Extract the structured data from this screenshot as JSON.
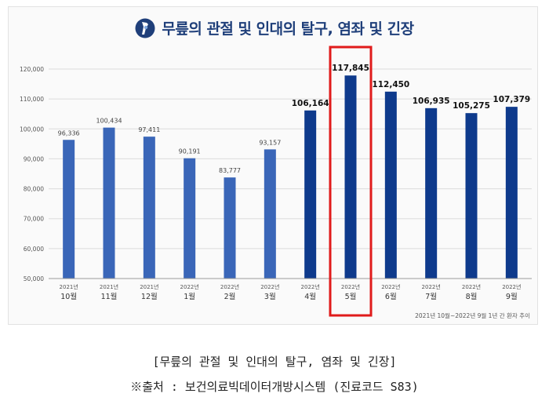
{
  "title": "무릎의 관절 및 인대의 탈구, 염좌 및 긴장",
  "note": "2021년 10월~2022년 9월 1년 간 환자 추이",
  "caption_title": "[무릎의 관절 및 인대의 탈구, 염좌 및 긴장]",
  "caption_source": "※출처 : 보건의료빅데이터개방시스템 (진료코드 S83)",
  "colors": {
    "light_bar": "#3a66b8",
    "dark_bar": "#0e3a8c",
    "highlight": "#e01b1b",
    "title": "#1f3f7a"
  },
  "chart_data": {
    "type": "bar",
    "title": "무릎의 관절 및 인대의 탈구, 염좌 및 긴장",
    "categories": [
      {
        "year": "2021년",
        "month": "10월"
      },
      {
        "year": "2021년",
        "month": "11월"
      },
      {
        "year": "2021년",
        "month": "12월"
      },
      {
        "year": "2022년",
        "month": "1월"
      },
      {
        "year": "2022년",
        "month": "2월"
      },
      {
        "year": "2022년",
        "month": "3월"
      },
      {
        "year": "2022년",
        "month": "4월"
      },
      {
        "year": "2022년",
        "month": "5월"
      },
      {
        "year": "2022년",
        "month": "6월"
      },
      {
        "year": "2022년",
        "month": "7월"
      },
      {
        "year": "2022년",
        "month": "8월"
      },
      {
        "year": "2022년",
        "month": "9월"
      }
    ],
    "values": [
      96336,
      100434,
      97411,
      90191,
      83777,
      93157,
      106164,
      117845,
      112450,
      106935,
      105275,
      107379
    ],
    "value_labels": [
      "96,336",
      "100,434",
      "97,411",
      "90,191",
      "83,777",
      "93,157",
      "106,164",
      "117,845",
      "112,450",
      "106,935",
      "105,275",
      "107,379"
    ],
    "ylim": [
      50000,
      120000
    ],
    "yticks": [
      50000,
      60000,
      70000,
      80000,
      90000,
      100000,
      110000,
      120000
    ],
    "ytick_labels": [
      "50,000",
      "60,000",
      "70,000",
      "80,000",
      "90,000",
      "100,000",
      "110,000",
      "120,000"
    ],
    "highlight_index": 7,
    "dark_from_index": 6,
    "grid": true,
    "xlabel": "",
    "ylabel": ""
  }
}
